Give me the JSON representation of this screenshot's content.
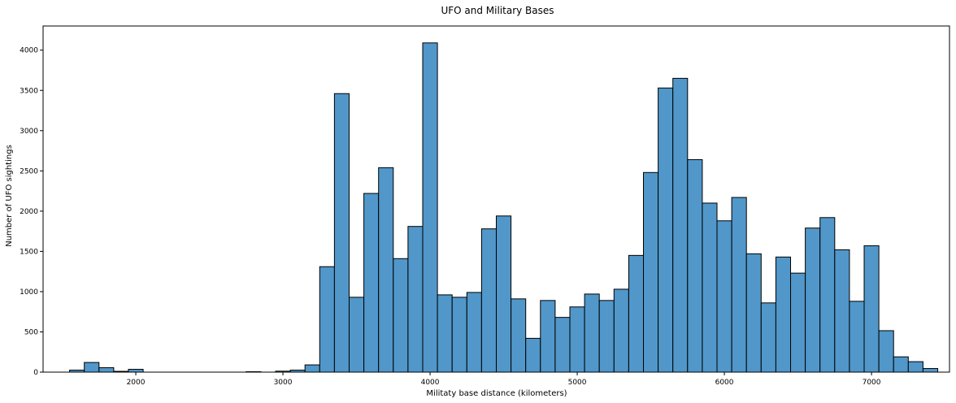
{
  "chart_data": {
    "type": "bar",
    "title": "UFO and Military Bases",
    "xlabel": "Militaty base distance (kilometers)",
    "ylabel": "Number of UFO sightings",
    "xlim": [
      1370,
      7530
    ],
    "ylim": [
      0,
      4300
    ],
    "grid": false,
    "x_ticks": [
      2000,
      3000,
      4000,
      5000,
      6000,
      7000
    ],
    "y_ticks": [
      0,
      500,
      1000,
      1500,
      2000,
      2500,
      3000,
      3500,
      4000
    ],
    "bin_start": 1550,
    "bin_width": 100,
    "values": [
      25,
      120,
      55,
      10,
      35,
      0,
      0,
      0,
      0,
      0,
      0,
      0,
      5,
      0,
      12,
      25,
      90,
      1310,
      3460,
      930,
      2220,
      2540,
      1410,
      1810,
      4090,
      960,
      930,
      990,
      1780,
      1940,
      910,
      420,
      890,
      680,
      810,
      970,
      890,
      1030,
      1450,
      2480,
      3530,
      3650,
      2640,
      2100,
      1880,
      2170,
      1470,
      860,
      1430,
      1230,
      1790,
      1920,
      1520,
      880,
      1570,
      515,
      190,
      130,
      45
    ]
  }
}
